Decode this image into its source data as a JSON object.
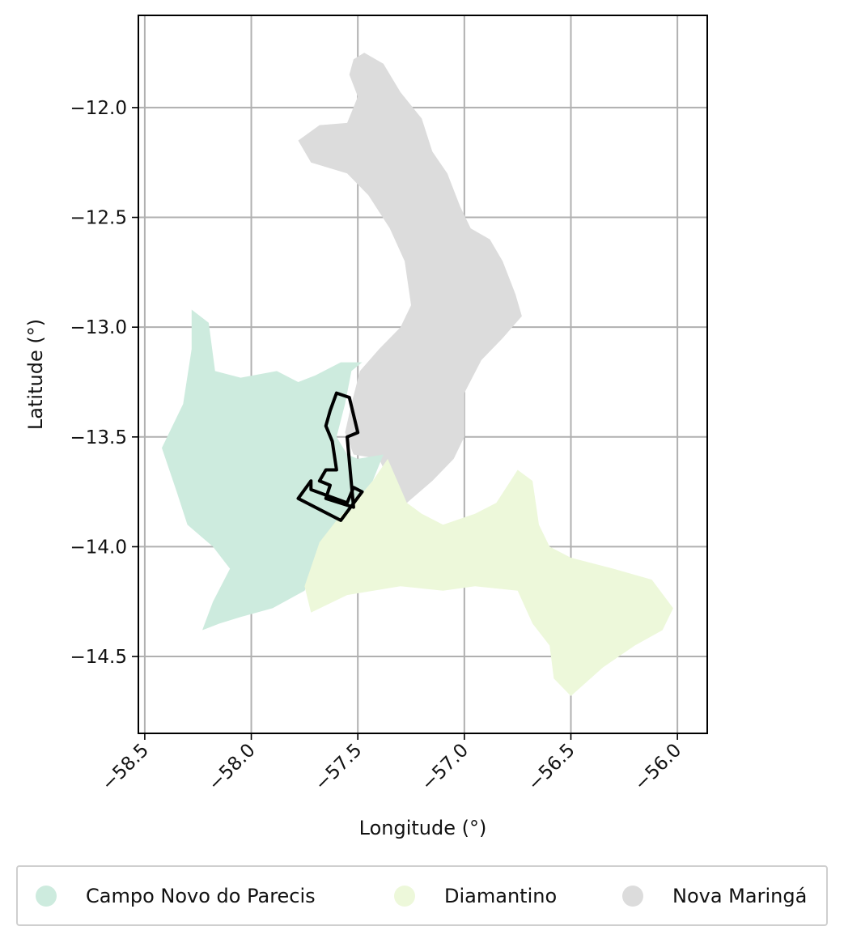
{
  "chart_data": {
    "type": "map",
    "xlabel": "Longitude (°)",
    "ylabel": "Latitude (°)",
    "xlim": [
      -58.53,
      -55.86
    ],
    "ylim": [
      -14.85,
      -11.58
    ],
    "xticks": [
      -58.5,
      -58.0,
      -57.5,
      -57.0,
      -56.5,
      -56.0
    ],
    "xtick_labels": [
      "−58.5",
      "−58.0",
      "−57.5",
      "−57.0",
      "−56.5",
      "−56.0"
    ],
    "yticks": [
      -12.0,
      -12.5,
      -13.0,
      -13.5,
      -14.0,
      -14.5
    ],
    "ytick_labels": [
      "−12.0",
      "−12.5",
      "−13.0",
      "−13.5",
      "−14.0",
      "−14.5"
    ],
    "grid": true,
    "legend_position": "bottom, below axes",
    "regions": [
      {
        "name": "Nova Maringá",
        "color": "#dcdcdc",
        "polygon": [
          [
            -57.52,
            -11.78
          ],
          [
            -57.47,
            -11.75
          ],
          [
            -57.38,
            -11.8
          ],
          [
            -57.3,
            -11.93
          ],
          [
            -57.2,
            -12.05
          ],
          [
            -57.15,
            -12.2
          ],
          [
            -57.08,
            -12.3
          ],
          [
            -57.02,
            -12.45
          ],
          [
            -56.97,
            -12.55
          ],
          [
            -56.88,
            -12.6
          ],
          [
            -56.82,
            -12.7
          ],
          [
            -56.76,
            -12.85
          ],
          [
            -56.73,
            -12.95
          ],
          [
            -56.82,
            -13.05
          ],
          [
            -56.92,
            -13.15
          ],
          [
            -57.0,
            -13.3
          ],
          [
            -57.0,
            -13.5
          ],
          [
            -57.05,
            -13.6
          ],
          [
            -57.15,
            -13.7
          ],
          [
            -57.27,
            -13.8
          ],
          [
            -57.33,
            -13.75
          ],
          [
            -57.4,
            -13.6
          ],
          [
            -57.52,
            -13.58
          ],
          [
            -57.56,
            -13.48
          ],
          [
            -57.53,
            -13.35
          ],
          [
            -57.49,
            -13.2
          ],
          [
            -57.4,
            -13.1
          ],
          [
            -57.3,
            -13.0
          ],
          [
            -57.25,
            -12.9
          ],
          [
            -57.28,
            -12.7
          ],
          [
            -57.35,
            -12.55
          ],
          [
            -57.45,
            -12.4
          ],
          [
            -57.55,
            -12.3
          ],
          [
            -57.72,
            -12.25
          ],
          [
            -57.78,
            -12.15
          ],
          [
            -57.68,
            -12.08
          ],
          [
            -57.55,
            -12.07
          ],
          [
            -57.5,
            -11.95
          ],
          [
            -57.54,
            -11.85
          ]
        ]
      },
      {
        "name": "Campo Novo do Parecis",
        "color": "#cdebde",
        "polygon": [
          [
            -58.28,
            -12.92
          ],
          [
            -58.2,
            -12.98
          ],
          [
            -58.17,
            -13.2
          ],
          [
            -58.05,
            -13.23
          ],
          [
            -57.88,
            -13.2
          ],
          [
            -57.78,
            -13.25
          ],
          [
            -57.7,
            -13.22
          ],
          [
            -57.58,
            -13.16
          ],
          [
            -57.48,
            -13.16
          ],
          [
            -57.53,
            -13.2
          ],
          [
            -57.56,
            -13.35
          ],
          [
            -57.6,
            -13.5
          ],
          [
            -57.55,
            -13.58
          ],
          [
            -57.5,
            -13.6
          ],
          [
            -57.38,
            -13.58
          ],
          [
            -57.43,
            -13.7
          ],
          [
            -57.5,
            -13.78
          ],
          [
            -57.55,
            -13.85
          ],
          [
            -57.62,
            -13.93
          ],
          [
            -57.68,
            -14.05
          ],
          [
            -57.75,
            -14.2
          ],
          [
            -57.9,
            -14.28
          ],
          [
            -58.05,
            -14.32
          ],
          [
            -58.15,
            -14.35
          ],
          [
            -58.23,
            -14.38
          ],
          [
            -58.18,
            -14.25
          ],
          [
            -58.1,
            -14.1
          ],
          [
            -58.18,
            -14.0
          ],
          [
            -58.3,
            -13.9
          ],
          [
            -58.35,
            -13.75
          ],
          [
            -58.42,
            -13.55
          ],
          [
            -58.32,
            -13.35
          ],
          [
            -58.28,
            -13.1
          ]
        ]
      },
      {
        "name": "Diamantino",
        "color": "#edf8da",
        "polygon": [
          [
            -57.36,
            -13.6
          ],
          [
            -57.27,
            -13.8
          ],
          [
            -57.2,
            -13.85
          ],
          [
            -57.1,
            -13.9
          ],
          [
            -56.95,
            -13.85
          ],
          [
            -56.85,
            -13.8
          ],
          [
            -56.75,
            -13.65
          ],
          [
            -56.68,
            -13.7
          ],
          [
            -56.65,
            -13.9
          ],
          [
            -56.6,
            -14.0
          ],
          [
            -56.5,
            -14.05
          ],
          [
            -56.3,
            -14.1
          ],
          [
            -56.12,
            -14.15
          ],
          [
            -56.02,
            -14.28
          ],
          [
            -56.07,
            -14.38
          ],
          [
            -56.2,
            -14.45
          ],
          [
            -56.35,
            -14.55
          ],
          [
            -56.5,
            -14.68
          ],
          [
            -56.58,
            -14.6
          ],
          [
            -56.6,
            -14.45
          ],
          [
            -56.68,
            -14.35
          ],
          [
            -56.75,
            -14.2
          ],
          [
            -56.95,
            -14.18
          ],
          [
            -57.1,
            -14.2
          ],
          [
            -57.3,
            -14.18
          ],
          [
            -57.55,
            -14.22
          ],
          [
            -57.72,
            -14.3
          ],
          [
            -57.75,
            -14.18
          ],
          [
            -57.68,
            -13.98
          ],
          [
            -57.6,
            -13.88
          ],
          [
            -57.5,
            -13.78
          ],
          [
            -57.43,
            -13.7
          ]
        ]
      }
    ],
    "outline": [
      [
        -57.6,
        -13.3
      ],
      [
        -57.54,
        -13.32
      ],
      [
        -57.5,
        -13.48
      ],
      [
        -57.55,
        -13.5
      ],
      [
        -57.52,
        -13.82
      ],
      [
        -57.65,
        -13.78
      ],
      [
        -57.63,
        -13.72
      ],
      [
        -57.68,
        -13.7
      ],
      [
        -57.65,
        -13.65
      ],
      [
        -57.6,
        -13.65
      ],
      [
        -57.62,
        -13.52
      ],
      [
        -57.65,
        -13.45
      ],
      [
        -57.63,
        -13.38
      ],
      [
        -57.6,
        -13.3
      ]
    ],
    "outline_lower": [
      [
        -57.72,
        -13.7
      ],
      [
        -57.78,
        -13.78
      ],
      [
        -57.58,
        -13.88
      ],
      [
        -57.48,
        -13.75
      ],
      [
        -57.52,
        -13.73
      ],
      [
        -57.55,
        -13.8
      ],
      [
        -57.72,
        -13.74
      ]
    ],
    "outline_color": "#000000"
  },
  "legend": {
    "items": [
      {
        "label": "Campo Novo do Parecis",
        "color": "#cdebde"
      },
      {
        "label": "Diamantino",
        "color": "#edf8da"
      },
      {
        "label": "Nova Maringá",
        "color": "#dcdcdc"
      }
    ]
  }
}
